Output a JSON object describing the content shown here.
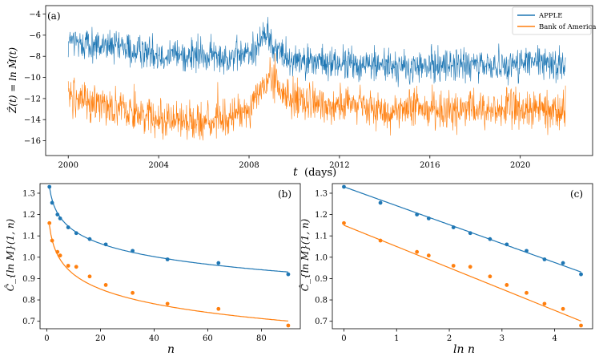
{
  "colors": {
    "apple": "#1f77b4",
    "boa": "#ff7f0e"
  },
  "chart_data": [
    {
      "type": "line",
      "panel_label": "(a)",
      "xlabel_var": "t",
      "xlabel_unit": "(days)",
      "ylabel": "Ẑ(t) = ln M̂(t)",
      "xlim": [
        1999.0,
        2023.2
      ],
      "ylim": [
        -17.4,
        -3.2
      ],
      "xticks": [
        2000,
        2004,
        2008,
        2012,
        2016,
        2020
      ],
      "xtick_labels": [
        "2000",
        "2004",
        "2008",
        "2012",
        "2016",
        "2020"
      ],
      "yticks": [
        -16,
        -14,
        -12,
        -10,
        -8,
        -6,
        -4
      ],
      "ytick_labels": [
        "−16",
        "−14",
        "−12",
        "−10",
        "−8",
        "−6",
        "−4"
      ],
      "legend": [
        "APPLE",
        "Bank of America"
      ],
      "legend_position": "top-right",
      "series": [
        {
          "name": "APPLE",
          "x": [
            2000.0,
            2001.0,
            2002.0,
            2003.0,
            2004.0,
            2005.0,
            2006.0,
            2007.0,
            2008.0,
            2008.8,
            2009.2,
            2010.0,
            2011.0,
            2012.0,
            2013.0,
            2014.0,
            2015.0,
            2016.0,
            2017.0,
            2018.0,
            2019.0,
            2020.0,
            2021.0,
            2022.0
          ],
          "y": [
            -6.6,
            -6.9,
            -7.2,
            -7.5,
            -7.7,
            -7.9,
            -8.0,
            -8.0,
            -7.8,
            -5.8,
            -7.4,
            -8.3,
            -8.6,
            -8.7,
            -8.8,
            -8.8,
            -9.2,
            -8.9,
            -8.7,
            -9.0,
            -8.8,
            -8.7,
            -8.6,
            -8.8
          ],
          "noise": 1.0
        },
        {
          "name": "Bank of America",
          "x": [
            2000.0,
            2001.0,
            2002.0,
            2003.0,
            2004.0,
            2005.0,
            2006.0,
            2007.0,
            2008.0,
            2009.0,
            2009.5,
            2010.0,
            2011.0,
            2012.0,
            2013.0,
            2014.0,
            2015.0,
            2016.0,
            2017.0,
            2018.0,
            2019.0,
            2020.0,
            2021.0,
            2022.0
          ],
          "y": [
            -11.8,
            -12.2,
            -12.8,
            -13.3,
            -13.8,
            -14.0,
            -14.2,
            -14.0,
            -12.8,
            -9.9,
            -11.5,
            -12.2,
            -12.6,
            -12.5,
            -12.8,
            -13.2,
            -13.1,
            -12.8,
            -13.2,
            -13.1,
            -13.0,
            -13.0,
            -13.1,
            -13.1
          ],
          "noise": 1.1
        }
      ]
    },
    {
      "type": "scatter",
      "panel_label": "(b)",
      "xlabel": "n",
      "ylabel": "Ĉ_{ln M}(1, n)",
      "xlim": [
        -2.5,
        94.5
      ],
      "ylim": [
        0.665,
        1.345
      ],
      "xticks": [
        0,
        20,
        40,
        60,
        80
      ],
      "xtick_labels": [
        "0",
        "20",
        "40",
        "60",
        "80"
      ],
      "yticks": [
        0.7,
        0.8,
        0.9,
        1.0,
        1.1,
        1.2,
        1.3
      ],
      "ytick_labels": [
        "0.7",
        "0.8",
        "0.9",
        "1.0",
        "1.1",
        "1.2",
        "1.3"
      ],
      "series": [
        {
          "name": "APPLE",
          "x": [
            1,
            2,
            4,
            5,
            8,
            11,
            16,
            22,
            32,
            45,
            64,
            90
          ],
          "y": [
            1.33,
            1.255,
            1.2,
            1.182,
            1.14,
            1.113,
            1.085,
            1.06,
            1.03,
            0.99,
            0.973,
            0.92
          ],
          "fit": {
            "a": 1.33,
            "b": 0.0887
          }
        },
        {
          "name": "Bank of America",
          "x": [
            1,
            2,
            4,
            5,
            8,
            11,
            16,
            22,
            32,
            45,
            64,
            90
          ],
          "y": [
            1.16,
            1.078,
            1.025,
            1.008,
            0.96,
            0.955,
            0.91,
            0.87,
            0.833,
            0.782,
            0.758,
            0.68
          ],
          "fit": {
            "a": 1.15,
            "b": 0.0998
          }
        }
      ]
    },
    {
      "type": "scatter",
      "panel_label": "(c)",
      "xlabel": "ln n",
      "ylabel": "Ĉ_{ln M}(1, n)",
      "xlim": [
        -0.22,
        4.72
      ],
      "ylim": [
        0.665,
        1.345
      ],
      "xticks": [
        0,
        1,
        2,
        3,
        4
      ],
      "xtick_labels": [
        "0",
        "1",
        "2",
        "3",
        "4"
      ],
      "yticks": [
        0.7,
        0.8,
        0.9,
        1.0,
        1.1,
        1.2,
        1.3
      ],
      "ytick_labels": [
        "0.7",
        "0.8",
        "0.9",
        "1.0",
        "1.1",
        "1.2",
        "1.3"
      ],
      "series": [
        {
          "name": "APPLE",
          "x": [
            0,
            0.693,
            1.386,
            1.609,
            2.079,
            2.398,
            2.773,
            3.091,
            3.466,
            3.807,
            4.159,
            4.5
          ],
          "y": [
            1.33,
            1.255,
            1.2,
            1.182,
            1.14,
            1.113,
            1.085,
            1.06,
            1.03,
            0.99,
            0.973,
            0.92
          ],
          "fit": {
            "a": 1.33,
            "b": 0.0887
          }
        },
        {
          "name": "Bank of America",
          "x": [
            0,
            0.693,
            1.386,
            1.609,
            2.079,
            2.398,
            2.773,
            3.091,
            3.466,
            3.807,
            4.159,
            4.5
          ],
          "y": [
            1.16,
            1.078,
            1.025,
            1.008,
            0.96,
            0.955,
            0.91,
            0.87,
            0.833,
            0.782,
            0.758,
            0.68
          ],
          "fit": {
            "a": 1.15,
            "b": 0.0998
          }
        }
      ]
    }
  ]
}
